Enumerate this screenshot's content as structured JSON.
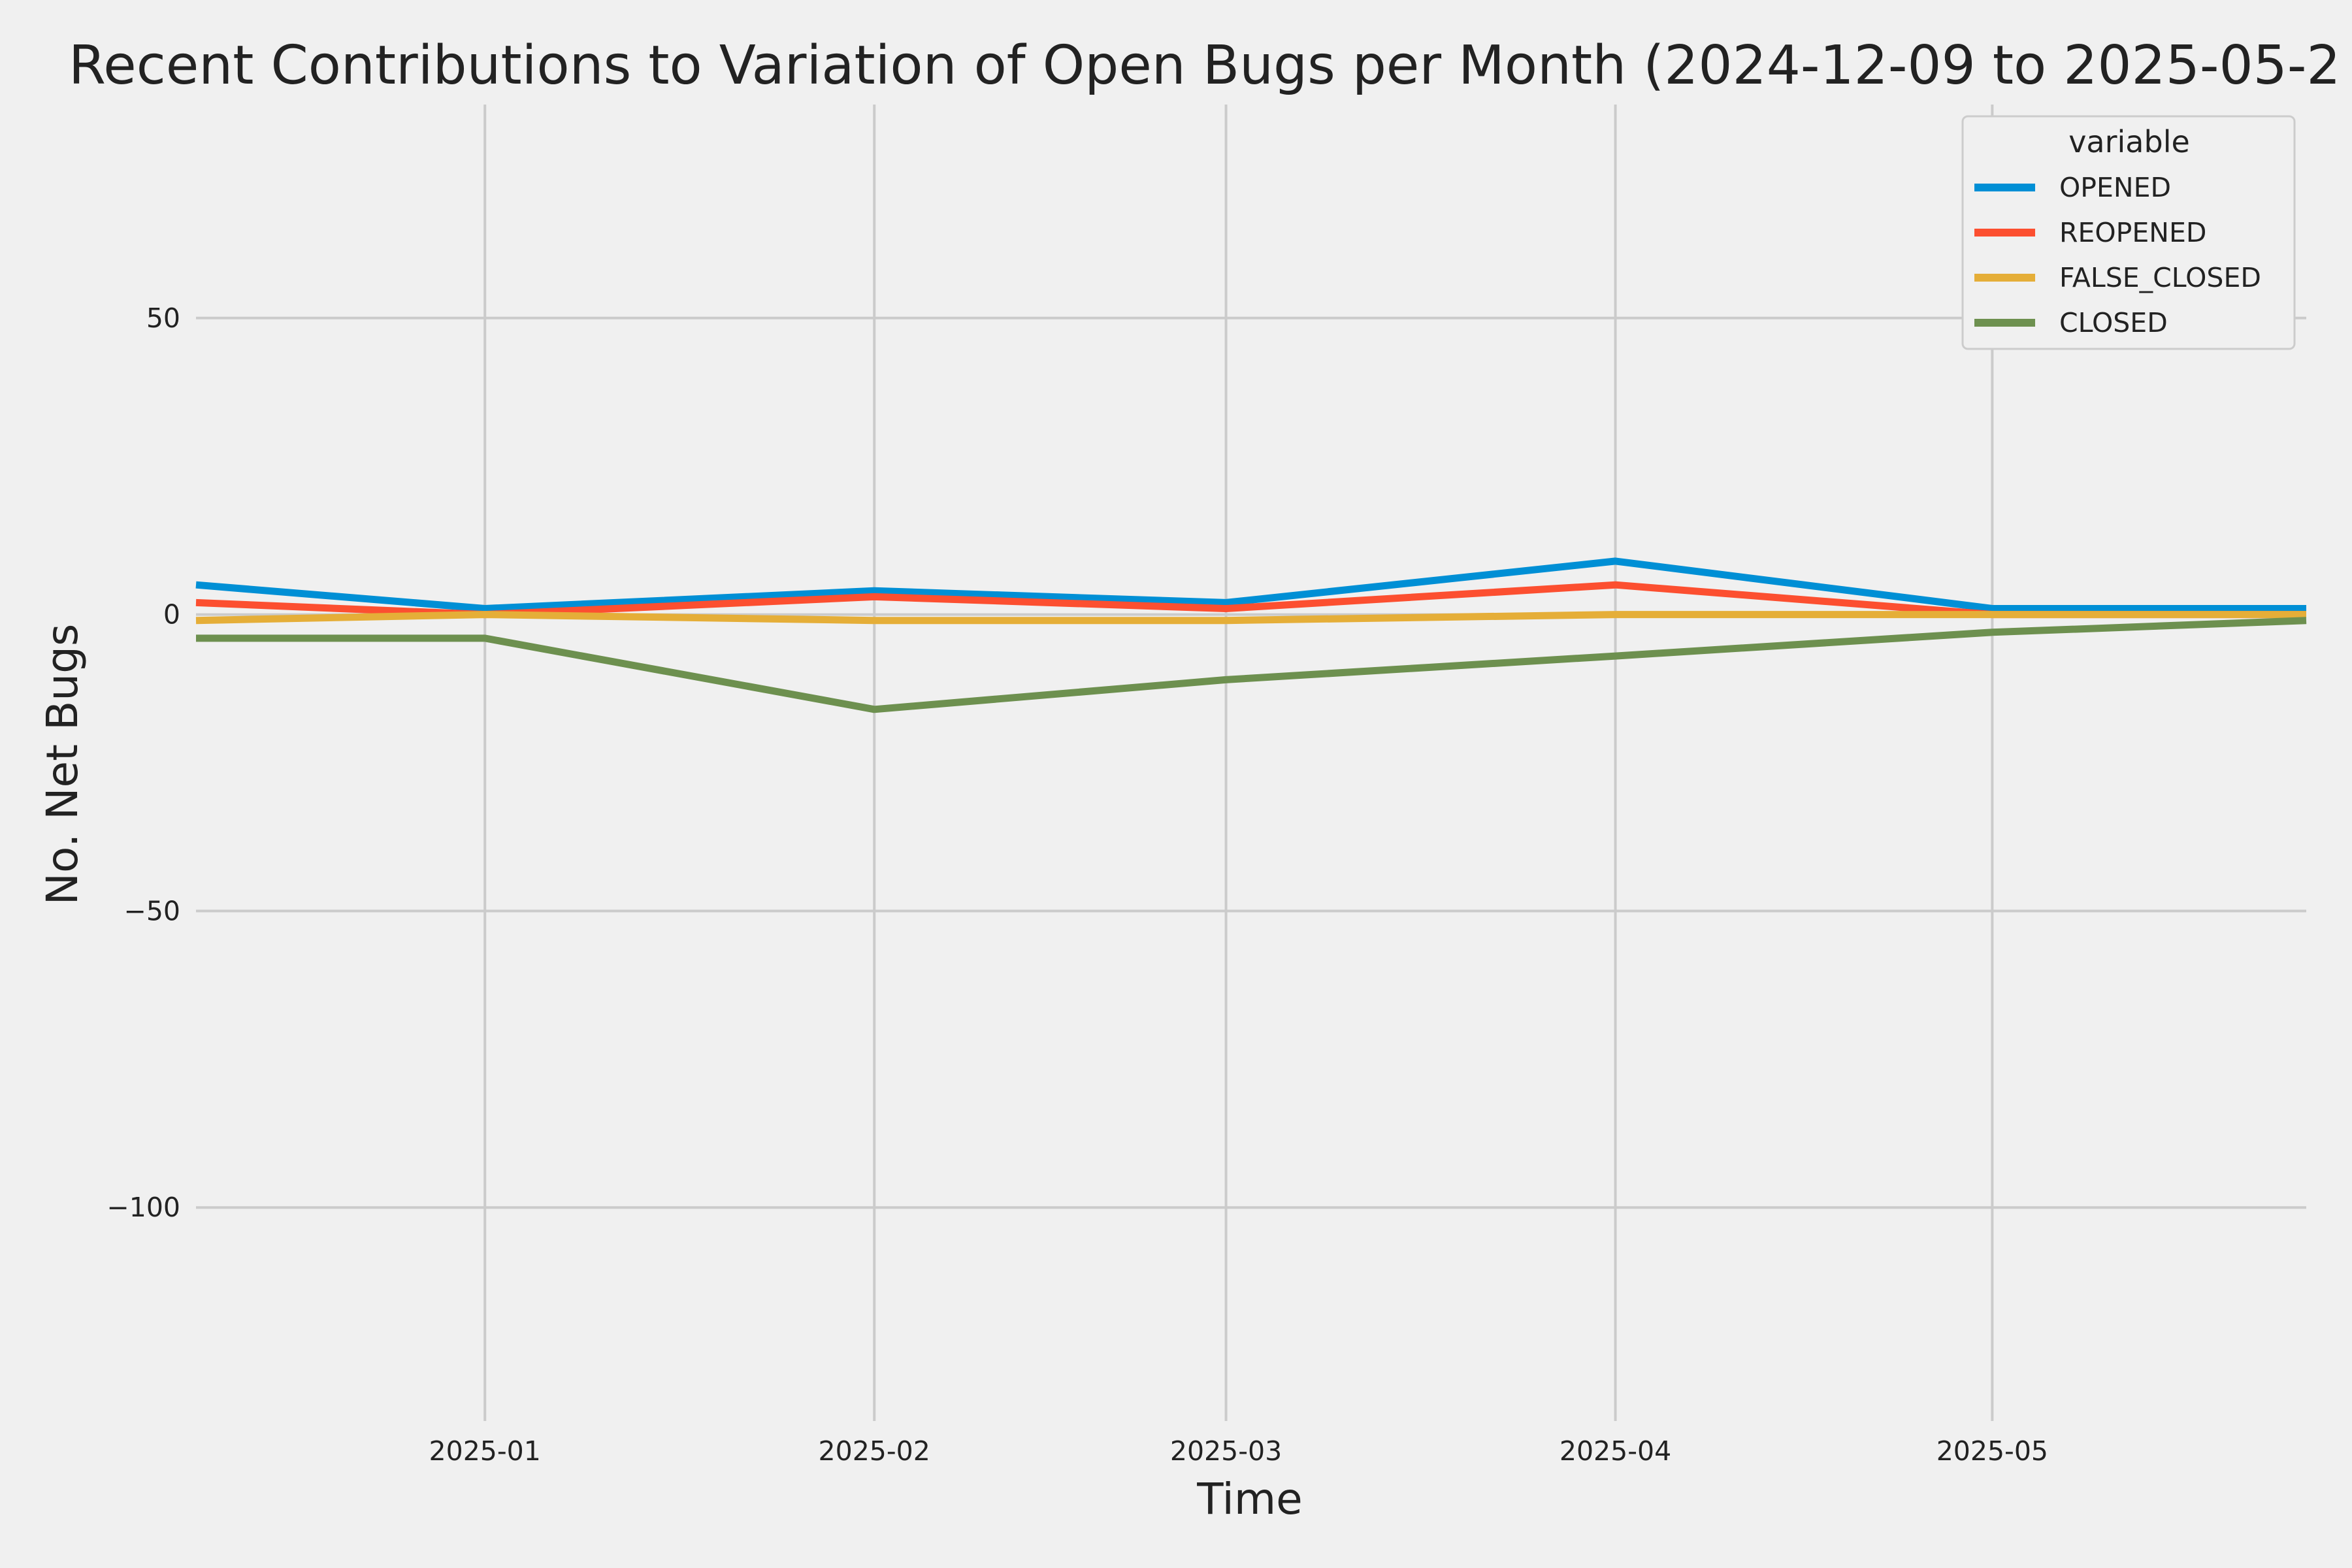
{
  "chart_data": {
    "type": "line",
    "title": "Recent Contributions to Variation of Open Bugs per Month (2024-12-09 to 2025-05-2",
    "xlabel": "Time",
    "ylabel": "No. Net Bugs",
    "x": [
      "2024-12-09",
      "2025-01-01",
      "2025-02-01",
      "2025-03-01",
      "2025-04-01",
      "2025-05-01",
      "2025-05-26"
    ],
    "xlim": [
      "2024-12-09",
      "2025-05-26"
    ],
    "ylim": [
      -136,
      86
    ],
    "x_ticks": [
      "2025-01",
      "2025-02",
      "2025-03",
      "2025-04",
      "2025-05"
    ],
    "y_ticks": [
      50,
      0,
      -50,
      -100
    ],
    "y_tick_labels": [
      "50",
      "0",
      "−50",
      "−100"
    ],
    "grid": true,
    "legend": {
      "title": "variable",
      "placement": "upper right"
    },
    "series": [
      {
        "name": "OPENED",
        "color": "#008fd5",
        "values": [
          5,
          1,
          4,
          2,
          9,
          1,
          1
        ]
      },
      {
        "name": "REOPENED",
        "color": "#fc4f30",
        "values": [
          2,
          0,
          3,
          1,
          5,
          0,
          0
        ]
      },
      {
        "name": "FALSE_CLOSED",
        "color": "#e5ae38",
        "values": [
          -1,
          0,
          -1,
          -1,
          0,
          0,
          0
        ]
      },
      {
        "name": "CLOSED",
        "color": "#6d904f",
        "values": [
          -4,
          -4,
          -16,
          -11,
          -7,
          -3,
          -1
        ]
      }
    ]
  }
}
